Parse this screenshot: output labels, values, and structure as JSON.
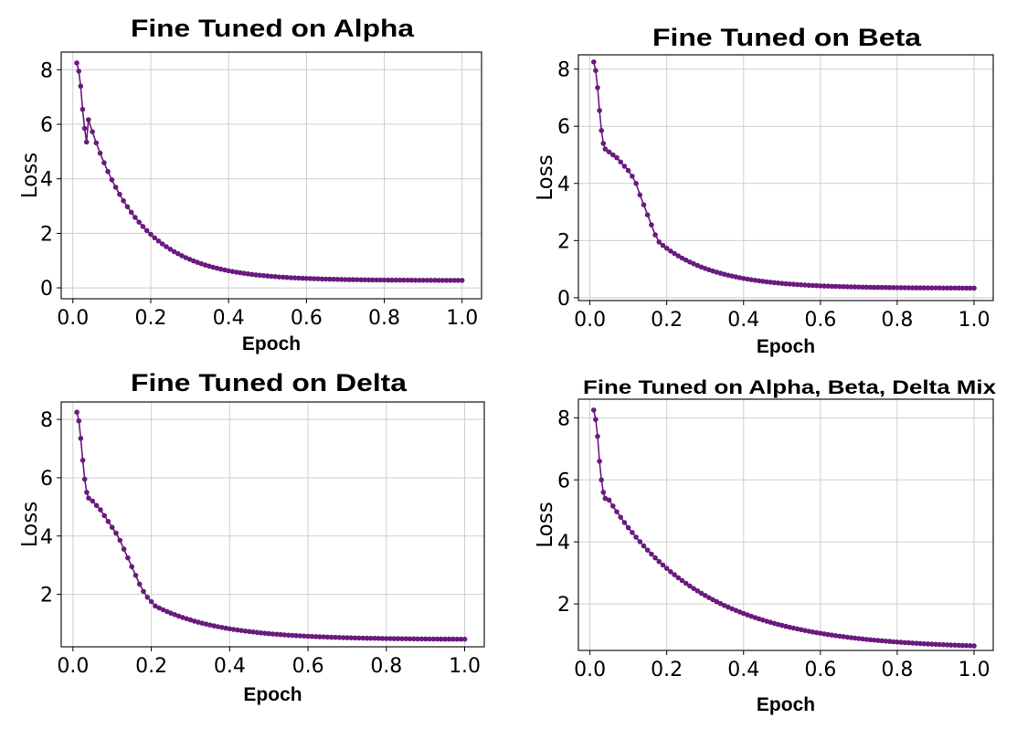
{
  "chart_data": [
    {
      "type": "line",
      "title": "Fine Tuned on Alpha",
      "xlabel": "Epoch",
      "ylabel": "Loss",
      "xlim": [
        -0.03,
        1.05
      ],
      "ylim": [
        -0.4,
        8.65
      ],
      "xticks": [
        "0.0",
        "0.2",
        "0.4",
        "0.6",
        "0.8",
        "1.0"
      ],
      "yticks": [
        "0",
        "2",
        "4",
        "6",
        "8"
      ],
      "grid": true,
      "legend": "none",
      "color": "#6a1a7e",
      "series": [
        {
          "x": [
            0.01,
            0.015,
            0.02,
            0.025,
            0.03,
            0.035
          ],
          "y": [
            8.25,
            7.95,
            7.4,
            6.55,
            5.85,
            5.35
          ]
        },
        {
          "curve": {
            "kind": "exp",
            "x_start": 0.04,
            "x_end": 1.0,
            "step": 0.01,
            "a": 5.9,
            "k": 7.8,
            "c": 0.27
          }
        }
      ]
    },
    {
      "type": "line",
      "title": "Fine Tuned on Beta",
      "xlabel": "Epoch",
      "ylabel": "Loss",
      "xlim": [
        -0.03,
        1.05
      ],
      "ylim": [
        -0.1,
        8.5
      ],
      "xticks": [
        "0.0",
        "0.2",
        "0.4",
        "0.6",
        "0.8",
        "1.0"
      ],
      "yticks": [
        "0",
        "2",
        "4",
        "6",
        "8"
      ],
      "grid": true,
      "legend": "none",
      "color": "#6a1a7e",
      "series": [
        {
          "x": [
            0.01,
            0.015,
            0.02,
            0.025,
            0.03,
            0.035,
            0.04,
            0.05,
            0.06,
            0.07,
            0.08,
            0.09,
            0.1,
            0.11,
            0.12,
            0.13,
            0.14,
            0.15,
            0.16,
            0.17,
            0.18
          ],
          "y": [
            8.25,
            7.95,
            7.35,
            6.55,
            5.85,
            5.4,
            5.2,
            5.1,
            5.0,
            4.9,
            4.75,
            4.6,
            4.45,
            4.25,
            4.0,
            3.6,
            3.25,
            2.9,
            2.55,
            2.2,
            1.95
          ]
        },
        {
          "curve": {
            "kind": "exp",
            "x_start": 0.19,
            "x_end": 1.0,
            "step": 0.01,
            "a": 1.5,
            "k": 7.0,
            "c": 0.33,
            "x0": 0.19
          }
        }
      ]
    },
    {
      "type": "line",
      "title": "Fine Tuned on Delta",
      "xlabel": "Epoch",
      "ylabel": "Loss",
      "xlim": [
        -0.03,
        1.05
      ],
      "ylim": [
        0.2,
        8.6
      ],
      "xticks": [
        "0.0",
        "0.2",
        "0.4",
        "0.6",
        "0.8",
        "1.0"
      ],
      "yticks": [
        "2",
        "4",
        "6",
        "8"
      ],
      "grid": true,
      "legend": "none",
      "color": "#6a1a7e",
      "series": [
        {
          "x": [
            0.01,
            0.015,
            0.02,
            0.025,
            0.03,
            0.035,
            0.04,
            0.05,
            0.06,
            0.07,
            0.08,
            0.09,
            0.1,
            0.11,
            0.12,
            0.13,
            0.14,
            0.15,
            0.16,
            0.17,
            0.18,
            0.19,
            0.2
          ],
          "y": [
            8.25,
            7.95,
            7.35,
            6.6,
            5.95,
            5.5,
            5.3,
            5.2,
            5.05,
            4.9,
            4.7,
            4.5,
            4.3,
            4.1,
            3.85,
            3.55,
            3.25,
            2.95,
            2.65,
            2.35,
            2.1,
            1.9,
            1.75
          ]
        },
        {
          "curve": {
            "kind": "exp",
            "x_start": 0.21,
            "x_end": 1.0,
            "step": 0.01,
            "a": 1.15,
            "k": 6.0,
            "c": 0.45,
            "x0": 0.21
          }
        }
      ]
    },
    {
      "type": "line",
      "title": "Fine Tuned on Alpha, Beta, Delta Mix",
      "xlabel": "Epoch",
      "ylabel": "Loss",
      "xlim": [
        -0.03,
        1.05
      ],
      "ylim": [
        0.5,
        8.6
      ],
      "xticks": [
        "0.0",
        "0.2",
        "0.4",
        "0.6",
        "0.8",
        "1.0"
      ],
      "yticks": [
        "2",
        "4",
        "6",
        "8"
      ],
      "grid": true,
      "legend": "none",
      "color": "#6a1a7e",
      "series": [
        {
          "x": [
            0.01,
            0.015,
            0.02,
            0.025,
            0.03,
            0.035,
            0.04
          ],
          "y": [
            8.25,
            7.95,
            7.4,
            6.6,
            6.0,
            5.6,
            5.4
          ]
        },
        {
          "curve": {
            "kind": "exp",
            "x_start": 0.05,
            "x_end": 1.0,
            "step": 0.01,
            "a": 5.0,
            "k": 4.1,
            "c": 0.55,
            "x0": 0.04
          }
        }
      ]
    }
  ]
}
